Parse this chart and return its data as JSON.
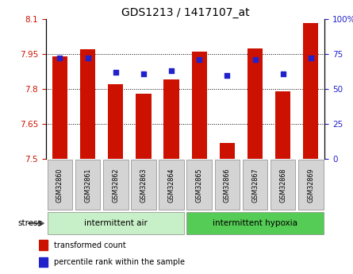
{
  "title": "GDS1213 / 1417107_at",
  "samples": [
    "GSM32860",
    "GSM32861",
    "GSM32862",
    "GSM32863",
    "GSM32864",
    "GSM32865",
    "GSM32866",
    "GSM32867",
    "GSM32868",
    "GSM32869"
  ],
  "transformed_count": [
    7.94,
    7.97,
    7.82,
    7.78,
    7.84,
    7.96,
    7.57,
    7.975,
    7.79,
    8.085
  ],
  "percentile_rank": [
    72,
    72,
    62,
    61,
    63,
    71,
    60,
    71,
    61,
    72
  ],
  "groups": [
    {
      "label": "intermittent air",
      "start": 0,
      "end": 4,
      "color": "#c8f0c8"
    },
    {
      "label": "intermittent hypoxia",
      "start": 5,
      "end": 9,
      "color": "#66dd66"
    }
  ],
  "ylim_left": [
    7.5,
    8.1
  ],
  "ylim_right": [
    0,
    100
  ],
  "yticks_left": [
    7.5,
    7.65,
    7.8,
    7.95,
    8.1
  ],
  "yticks_right": [
    0,
    25,
    50,
    75,
    100
  ],
  "ytick_labels_left": [
    "7.5",
    "7.65",
    "7.8",
    "7.95",
    "8.1"
  ],
  "ytick_labels_right": [
    "0",
    "25",
    "50",
    "75",
    "100%"
  ],
  "bar_color": "#cc1100",
  "dot_color": "#2222cc",
  "bar_width": 0.55,
  "stress_label": "stress",
  "legend_red": "transformed count",
  "legend_blue": "percentile rank within the sample",
  "tick_color_left": "#cc1100",
  "tick_color_right": "#2222cc",
  "label_bg_color": "#d4d4d4",
  "group_color_light": "#c8f0c8",
  "group_color_dark": "#55cc55"
}
